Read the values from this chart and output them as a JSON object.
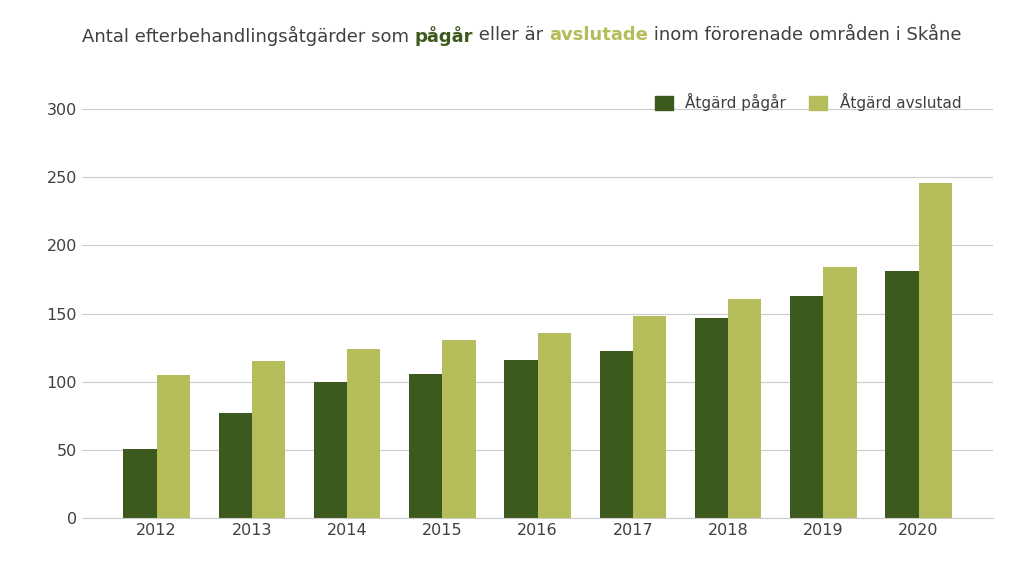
{
  "years": [
    2012,
    2013,
    2014,
    2015,
    2016,
    2017,
    2018,
    2019,
    2020
  ],
  "pagar": [
    51,
    77,
    100,
    106,
    116,
    123,
    147,
    163,
    181
  ],
  "avslutad": [
    105,
    115,
    124,
    131,
    136,
    148,
    161,
    184,
    246
  ],
  "color_pagar": "#3d5a1e",
  "color_avslutad": "#b5bc5a",
  "title_before_pagar": "Antal efterbehandlingsåtgärder som ",
  "title_pagar": "pågår",
  "title_between": " eller är ",
  "title_avslutad": "avslutade",
  "title_after": " inom förorenade områden i Skåne",
  "legend_pagar": "Åtgärd pågår",
  "legend_avslutad": "Åtgärd avslutad",
  "ylim": [
    0,
    325
  ],
  "yticks": [
    0,
    50,
    100,
    150,
    200,
    250,
    300
  ],
  "bar_width": 0.35,
  "background_color": "#ffffff",
  "grid_color": "#cccccc",
  "text_color": "#404040",
  "title_fontsize": 13.0,
  "axis_fontsize": 11.5
}
